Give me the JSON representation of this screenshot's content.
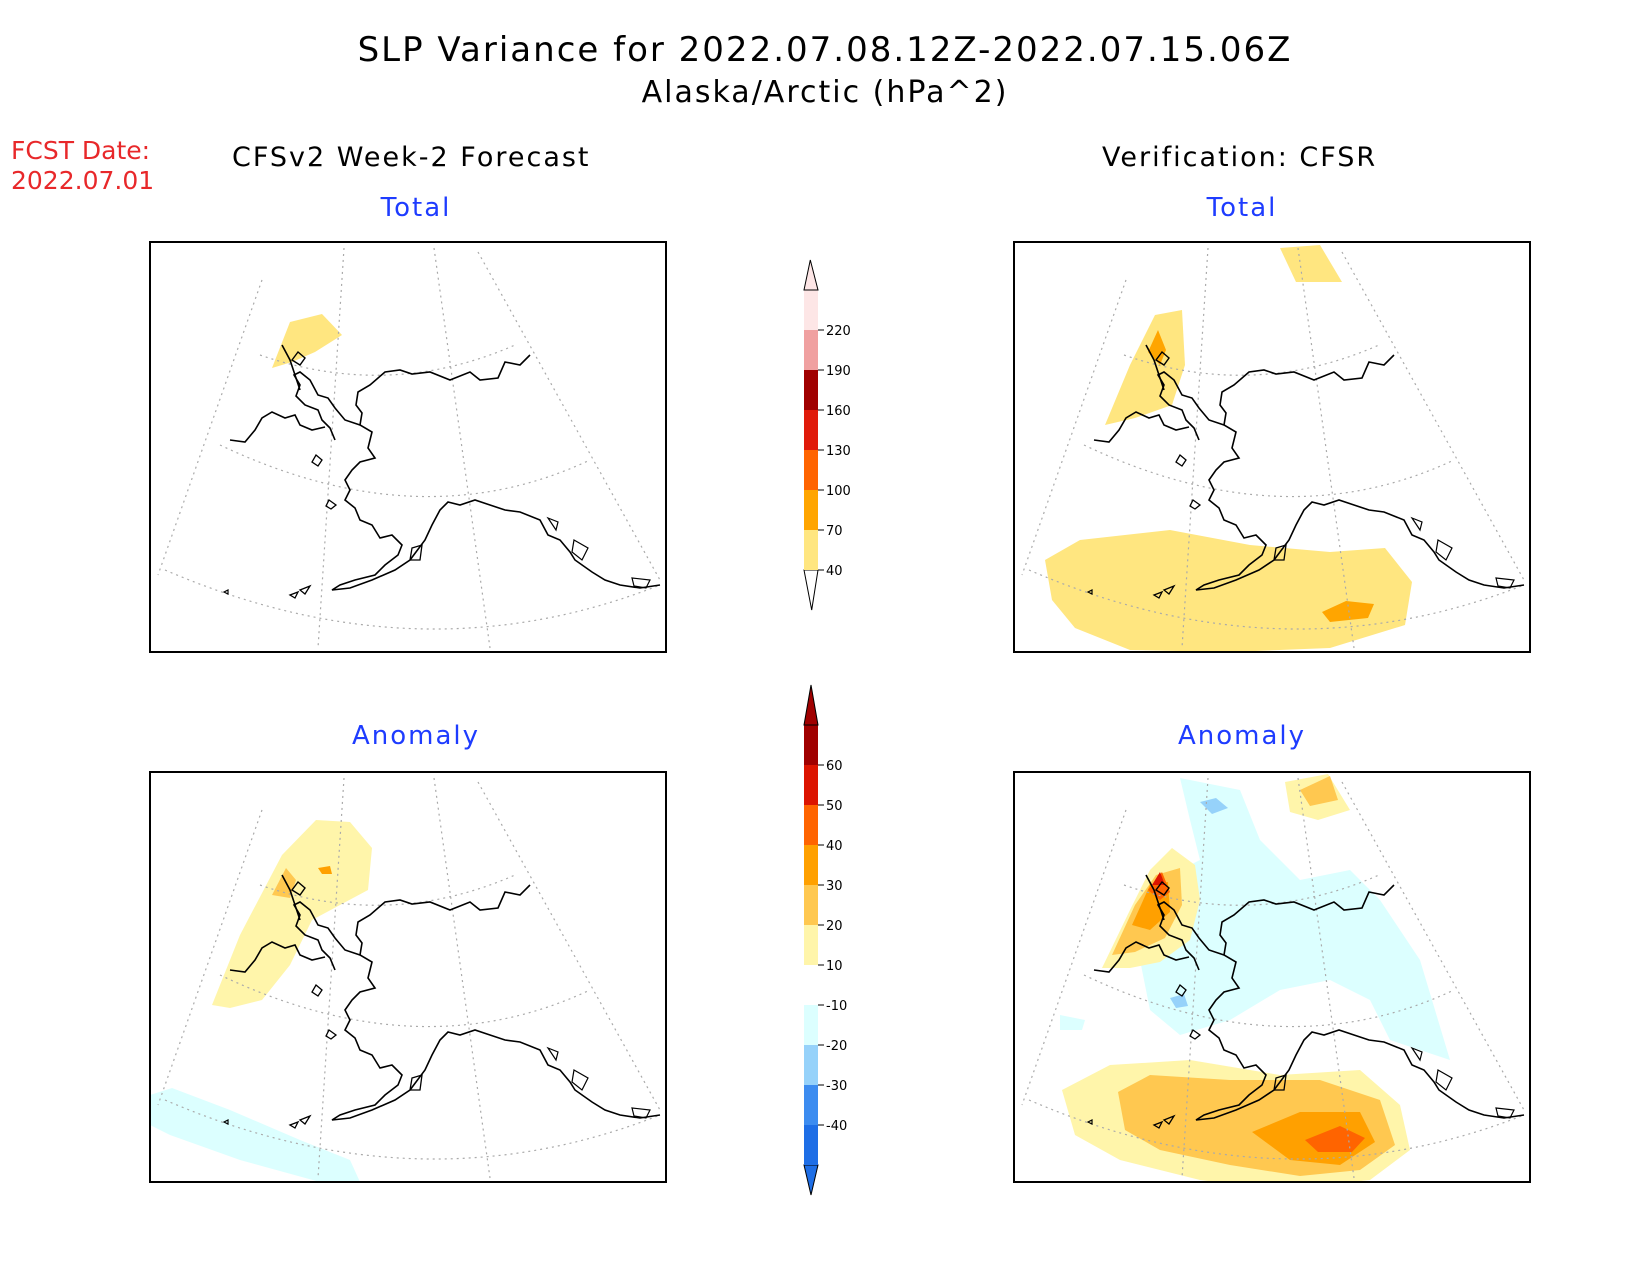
{
  "header": {
    "title": "SLP Variance for 2022.07.08.12Z-2022.07.15.06Z",
    "subtitle": "Alaska/Arctic (hPa^2)"
  },
  "fcst": {
    "line1": "FCST Date:",
    "line2": "2022.07.01"
  },
  "columns": {
    "left": "CFSv2 Week-2 Forecast",
    "right": "Verification: CFSR"
  },
  "panels": [
    {
      "title": "Total"
    },
    {
      "title": "Total"
    },
    {
      "title": "Anomaly"
    },
    {
      "title": "Anomaly"
    }
  ],
  "colorbars": {
    "total": {
      "labels": [
        "40",
        "70",
        "100",
        "130",
        "160",
        "190",
        "220"
      ],
      "colors": [
        "#ffe680",
        "#ffa500",
        "#ff6400",
        "#e01a0a",
        "#a00000",
        "#f0a0a0",
        "#fde6e6"
      ]
    },
    "anomaly": {
      "labels": [
        "-40",
        "-30",
        "-20",
        "-10",
        "10",
        "20",
        "30",
        "40",
        "50",
        "60"
      ],
      "colors": [
        "#1e6ee6",
        "#3c8cf0",
        "#96d2fa",
        "#dcffff",
        "#ffffff",
        "#fff5aa",
        "#ffc850",
        "#ffa000",
        "#ff6400",
        "#dc1400",
        "#a00000"
      ]
    }
  },
  "colors": {
    "title_text": "#000000",
    "fcst_text": "#e8282a",
    "panel_title_text": "#1e3cff"
  }
}
